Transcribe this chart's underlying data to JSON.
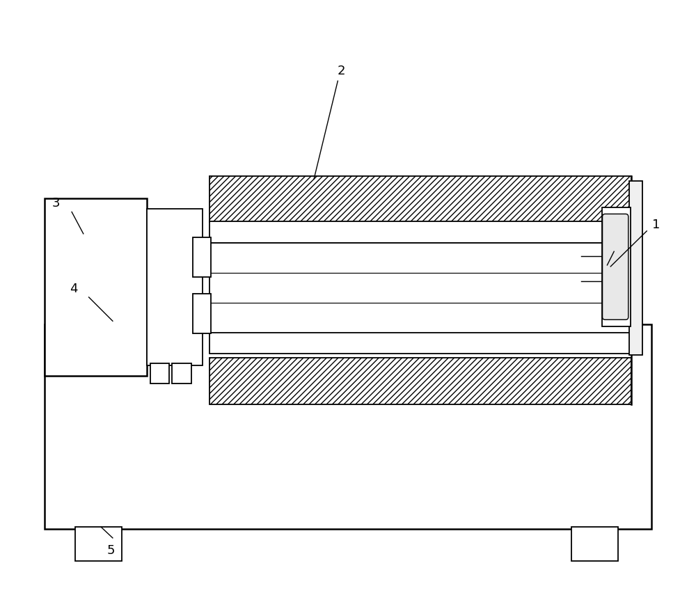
{
  "bg_color": "#ffffff",
  "lc": "#000000",
  "fig_w": 10.0,
  "fig_h": 8.53,
  "label_fontsize": 13
}
